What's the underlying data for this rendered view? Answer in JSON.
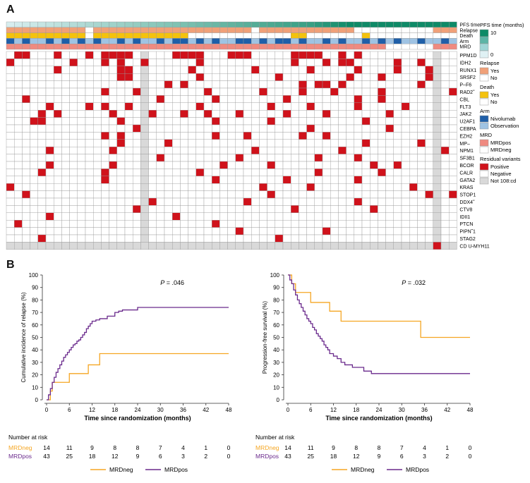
{
  "panel_labels": {
    "a": "A",
    "b": "B"
  },
  "heatmap": {
    "n_patients": 57,
    "annotation_rows": [
      "PFS time",
      "Relapse",
      "Death",
      "Arm",
      "MRD"
    ],
    "gene_rows": [
      "PPM1D",
      "IDH2",
      "RUNX1",
      "SRSF2",
      "P–F6",
      "RAD2˜",
      "CBL",
      "FLT3",
      "JAK2",
      "U2AF1",
      "CEBPA",
      "EZH2",
      "MP–",
      "NPM1",
      "SF3B1",
      "BCOR",
      "CALR",
      "GATA2",
      "KRAS",
      "STOP1",
      "DDX4˜",
      "CTV8",
      "IDII1",
      "PTCN",
      "PIPN˜1",
      "STAG2",
      "CD U-MYH11"
    ],
    "pfs_time_months": [
      0.4,
      0.6,
      0.8,
      1,
      1.2,
      1.4,
      1.6,
      1.8,
      2,
      2.2,
      2.4,
      2.6,
      2.8,
      3,
      3.2,
      3.4,
      3.6,
      3.8,
      4,
      4.2,
      4.4,
      4.6,
      4.8,
      5,
      5.2,
      5.4,
      5.6,
      5.8,
      6,
      6.2,
      6.4,
      6.6,
      6.8,
      7,
      7.2,
      7.4,
      7.6,
      7.8,
      8,
      8.4,
      8.8,
      9.2,
      9.6,
      10,
      10,
      10,
      10,
      10,
      10,
      10,
      10,
      10,
      10,
      10,
      10,
      10,
      10
    ],
    "relapse": [
      1,
      1,
      1,
      1,
      1,
      1,
      1,
      1,
      1,
      1,
      0,
      1,
      1,
      1,
      1,
      1,
      1,
      1,
      1,
      1,
      1,
      1,
      1,
      1,
      1,
      1,
      1,
      1,
      1,
      1,
      1,
      0,
      1,
      1,
      1,
      1,
      1,
      1,
      1,
      1,
      1,
      1,
      1,
      1,
      0,
      0,
      0,
      0,
      0,
      0,
      0,
      0,
      0,
      0,
      1,
      1,
      1
    ],
    "death": [
      1,
      1,
      1,
      1,
      1,
      1,
      1,
      1,
      1,
      1,
      0,
      1,
      1,
      1,
      1,
      1,
      1,
      1,
      1,
      1,
      1,
      1,
      1,
      0,
      0,
      0,
      0,
      0,
      0,
      0,
      0,
      0,
      0,
      0,
      0,
      0,
      1,
      1,
      0,
      0,
      0,
      0,
      0,
      0,
      0,
      1,
      0,
      0,
      0,
      0,
      0,
      0,
      0,
      0,
      0,
      0,
      0
    ],
    "arm": [
      1,
      0,
      1,
      0,
      0,
      1,
      0,
      1,
      0,
      1,
      0,
      1,
      0,
      0,
      1,
      0,
      1,
      0,
      0,
      1,
      0,
      1,
      1,
      0,
      1,
      0,
      1,
      0,
      0,
      1,
      1,
      0,
      1,
      0,
      1,
      1,
      0,
      1,
      0,
      0,
      1,
      0,
      1,
      0,
      0,
      1,
      0,
      1,
      0,
      1,
      0,
      0,
      1,
      0,
      0,
      1,
      0
    ],
    "mrd": [
      1,
      1,
      1,
      1,
      1,
      1,
      1,
      1,
      1,
      1,
      1,
      1,
      1,
      1,
      1,
      1,
      1,
      1,
      1,
      1,
      1,
      1,
      1,
      1,
      1,
      1,
      1,
      1,
      1,
      1,
      1,
      1,
      1,
      1,
      1,
      1,
      1,
      1,
      1,
      1,
      1,
      1,
      1,
      1,
      1,
      1,
      1,
      1,
      0,
      0,
      0,
      0,
      0,
      0,
      1,
      1,
      1
    ],
    "not_tested_columns": [
      17,
      54
    ],
    "positive_cells": [
      [
        0,
        1
      ],
      [
        0,
        2
      ],
      [
        0,
        6
      ],
      [
        0,
        10
      ],
      [
        0,
        12
      ],
      [
        0,
        13
      ],
      [
        0,
        14
      ],
      [
        0,
        15
      ],
      [
        0,
        21
      ],
      [
        0,
        22
      ],
      [
        0,
        23
      ],
      [
        0,
        24
      ],
      [
        0,
        28
      ],
      [
        0,
        29
      ],
      [
        0,
        30
      ],
      [
        0,
        36
      ],
      [
        0,
        37
      ],
      [
        0,
        38
      ],
      [
        0,
        39
      ],
      [
        0,
        42
      ],
      [
        0,
        44
      ],
      [
        1,
        0
      ],
      [
        1,
        8
      ],
      [
        1,
        12
      ],
      [
        1,
        14
      ],
      [
        1,
        17
      ],
      [
        1,
        24
      ],
      [
        1,
        36
      ],
      [
        1,
        40
      ],
      [
        1,
        42
      ],
      [
        1,
        43
      ],
      [
        1,
        49
      ],
      [
        1,
        52
      ],
      [
        2,
        6
      ],
      [
        2,
        14
      ],
      [
        2,
        15
      ],
      [
        2,
        23
      ],
      [
        2,
        31
      ],
      [
        2,
        38
      ],
      [
        2,
        44
      ],
      [
        2,
        49
      ],
      [
        2,
        53
      ],
      [
        3,
        14
      ],
      [
        3,
        15
      ],
      [
        3,
        24
      ],
      [
        3,
        34
      ],
      [
        3,
        43
      ],
      [
        3,
        47
      ],
      [
        3,
        53
      ],
      [
        4,
        20
      ],
      [
        4,
        22
      ],
      [
        4,
        37
      ],
      [
        4,
        39
      ],
      [
        4,
        40
      ],
      [
        4,
        42
      ],
      [
        4,
        52
      ],
      [
        5,
        12
      ],
      [
        5,
        16
      ],
      [
        5,
        25
      ],
      [
        5,
        32
      ],
      [
        5,
        37
      ],
      [
        5,
        41
      ],
      [
        5,
        47
      ],
      [
        5,
        56
      ],
      [
        6,
        2
      ],
      [
        6,
        19
      ],
      [
        6,
        26
      ],
      [
        6,
        35
      ],
      [
        6,
        44
      ],
      [
        6,
        47
      ],
      [
        7,
        5
      ],
      [
        7,
        10
      ],
      [
        7,
        12
      ],
      [
        7,
        15
      ],
      [
        7,
        24
      ],
      [
        7,
        33
      ],
      [
        7,
        38
      ],
      [
        7,
        44
      ],
      [
        7,
        50
      ],
      [
        8,
        4
      ],
      [
        8,
        6
      ],
      [
        8,
        13
      ],
      [
        8,
        18
      ],
      [
        8,
        22
      ],
      [
        8,
        25
      ],
      [
        8,
        29
      ],
      [
        8,
        35
      ],
      [
        8,
        40
      ],
      [
        8,
        48
      ],
      [
        9,
        3
      ],
      [
        9,
        4
      ],
      [
        9,
        14
      ],
      [
        9,
        26
      ],
      [
        9,
        33
      ],
      [
        9,
        45
      ],
      [
        10,
        16
      ],
      [
        10,
        38
      ],
      [
        10,
        48
      ],
      [
        11,
        12
      ],
      [
        11,
        14
      ],
      [
        11,
        26
      ],
      [
        11,
        30
      ],
      [
        11,
        37
      ],
      [
        11,
        40
      ],
      [
        12,
        14
      ],
      [
        12,
        20
      ],
      [
        12,
        45
      ],
      [
        12,
        52
      ],
      [
        13,
        5
      ],
      [
        13,
        13
      ],
      [
        13,
        31
      ],
      [
        13,
        42
      ],
      [
        13,
        55
      ],
      [
        14,
        19
      ],
      [
        14,
        29
      ],
      [
        14,
        39
      ],
      [
        14,
        44
      ],
      [
        15,
        5
      ],
      [
        15,
        13
      ],
      [
        15,
        27
      ],
      [
        15,
        33
      ],
      [
        15,
        46
      ],
      [
        15,
        49
      ],
      [
        16,
        4
      ],
      [
        16,
        12
      ],
      [
        16,
        24
      ],
      [
        16,
        39
      ],
      [
        16,
        47
      ],
      [
        17,
        12
      ],
      [
        17,
        26
      ],
      [
        17,
        35
      ],
      [
        17,
        44
      ],
      [
        18,
        0
      ],
      [
        18,
        32
      ],
      [
        18,
        38
      ],
      [
        18,
        51
      ],
      [
        19,
        2
      ],
      [
        19,
        33
      ],
      [
        19,
        53
      ],
      [
        19,
        56
      ],
      [
        20,
        18
      ],
      [
        20,
        30
      ],
      [
        20,
        44
      ],
      [
        21,
        16
      ],
      [
        21,
        36
      ],
      [
        21,
        46
      ],
      [
        22,
        5
      ],
      [
        22,
        21
      ],
      [
        23,
        1
      ],
      [
        23,
        26
      ],
      [
        24,
        29
      ],
      [
        24,
        40
      ],
      [
        25,
        4
      ],
      [
        25,
        34
      ],
      [
        26,
        54
      ]
    ]
  },
  "legend": {
    "pfs_title": "PFS time (months)",
    "pfs_max": "10",
    "pfs_min": "0",
    "relapse_title": "Relapse",
    "relapse_yes": "Yes",
    "relapse_no": "No",
    "death_title": "Death",
    "death_yes": "Yes",
    "death_no": "No",
    "arm_title": "Arm",
    "arm_nivo": "Nivolumab",
    "arm_obs": "Observation",
    "mrd_title": "MRD",
    "mrd_pos": "MRDpos",
    "mrd_neg": "MRDneg",
    "res_title": "Residual variants",
    "res_pos": "Positive",
    "res_neg": "Negative",
    "res_nt": "Not 108:cd"
  },
  "colors": {
    "positive": "#d0121b",
    "negative": "#ffffff",
    "not_tested": "#d9d9d9",
    "relapse_yes": "#f0a078",
    "death_yes": "#f4c20d",
    "arm_nivo": "#1f5fa8",
    "arm_obs": "#9fc3e3",
    "mrd_pos": "#ef8a80",
    "pfs_low": "#dff1f4",
    "pfs_high": "#0e8a67",
    "mrdneg_line": "#f5a623",
    "mrdpos_line": "#6a2a8c",
    "grid": "#b5b5b5"
  },
  "chart_data": [
    {
      "type": "line",
      "title": "",
      "xlabel": "Time since randomization (months)",
      "ylabel": "Cumulative incidence of relapse (%)",
      "xlim": [
        0,
        48
      ],
      "ylim": [
        0,
        100
      ],
      "xticks": [
        0,
        6,
        12,
        18,
        24,
        30,
        36,
        42,
        48
      ],
      "yticks": [
        0,
        10,
        20,
        30,
        40,
        50,
        60,
        70,
        80,
        90,
        100
      ],
      "p_label": "P",
      "p_value": "= .046",
      "series": [
        {
          "name": "MRDneg",
          "step": true,
          "x": [
            0,
            1,
            1.5,
            2,
            6,
            6.5,
            11,
            11.5,
            14,
            48
          ],
          "y": [
            0,
            7,
            14,
            14,
            21,
            21,
            28,
            28,
            37,
            37
          ]
        },
        {
          "name": "MRDpos",
          "step": true,
          "x": [
            0,
            0.5,
            1,
            1.5,
            2,
            2.5,
            3,
            3.5,
            4,
            4.5,
            5,
            5.5,
            6,
            6.5,
            7,
            7.5,
            8,
            8.5,
            9,
            9.5,
            10,
            10.5,
            11,
            11.5,
            12,
            13,
            14,
            15,
            16,
            18,
            19,
            20,
            21,
            22,
            24,
            48
          ],
          "y": [
            0,
            4,
            9,
            14,
            18,
            22,
            25,
            28,
            31,
            34,
            36,
            38,
            40,
            42,
            44,
            45,
            47,
            48,
            50,
            52,
            54,
            57,
            59,
            61,
            63,
            64,
            65,
            65,
            67,
            70,
            71,
            72,
            72,
            72,
            74,
            74
          ]
        }
      ]
    },
    {
      "type": "line",
      "title": "",
      "xlabel": "Time since randomization (months)",
      "ylabel": "Progression-free survival (%)",
      "xlim": [
        0,
        48
      ],
      "ylim": [
        0,
        100
      ],
      "xticks": [
        0,
        6,
        12,
        18,
        24,
        30,
        36,
        42,
        48
      ],
      "yticks": [
        0,
        10,
        20,
        30,
        40,
        50,
        60,
        70,
        80,
        90,
        100
      ],
      "p_label": "P",
      "p_value": "= .032",
      "series": [
        {
          "name": "MRDneg",
          "step": true,
          "x": [
            0,
            1,
            2,
            6,
            11,
            14,
            35,
            48
          ],
          "y": [
            100,
            93,
            86,
            78,
            71,
            63,
            50,
            50
          ]
        },
        {
          "name": "MRDpos",
          "step": true,
          "x": [
            0,
            0.5,
            1,
            1.5,
            2,
            2.5,
            3,
            3.5,
            4,
            4.5,
            5,
            5.5,
            6,
            6.5,
            7,
            7.5,
            8,
            8.5,
            9,
            9.5,
            10,
            10.5,
            11,
            12,
            13,
            14,
            15,
            16,
            17,
            18,
            20,
            22,
            48
          ],
          "y": [
            100,
            96,
            93,
            88,
            84,
            80,
            77,
            74,
            71,
            68,
            65,
            63,
            61,
            58,
            56,
            53,
            51,
            49,
            47,
            44,
            42,
            40,
            37,
            35,
            33,
            30,
            28,
            28,
            26,
            26,
            23,
            21,
            21
          ]
        }
      ]
    }
  ],
  "risk_table": {
    "title": "Number at risk",
    "rows": [
      {
        "name": "MRDneg",
        "values": [
          "14",
          "11",
          "9",
          "8",
          "8",
          "7",
          "4",
          "1",
          "0"
        ]
      },
      {
        "name": "MRDpos",
        "values": [
          "43",
          "25",
          "18",
          "12",
          "9",
          "6",
          "3",
          "2",
          "0"
        ]
      }
    ]
  },
  "km_legend": [
    "MRDneg",
    "MRDpos"
  ]
}
